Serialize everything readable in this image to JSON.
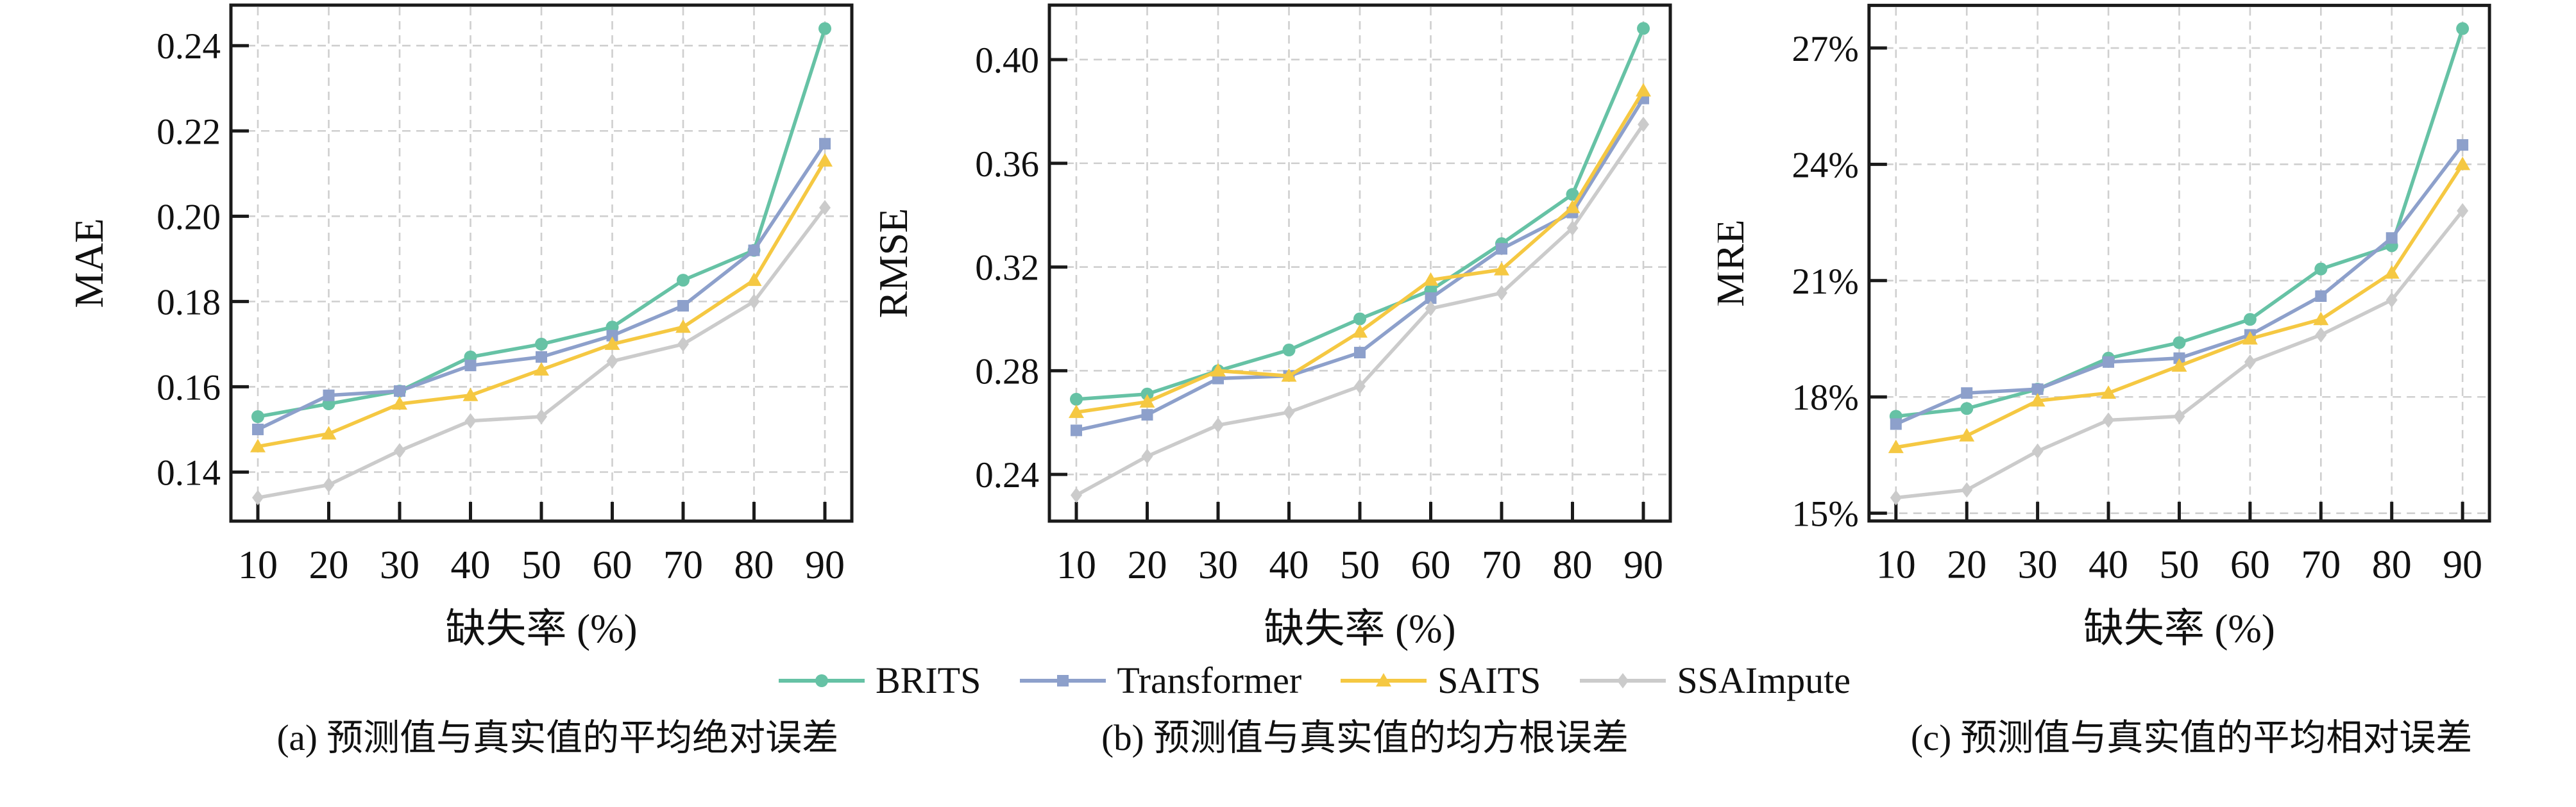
{
  "page": {
    "background": "#ffffff",
    "text_color": "#111111"
  },
  "legend": {
    "position": "bottom-center",
    "entries": [
      {
        "label": "BRITS",
        "color": "#66c2a5",
        "marker": "circle"
      },
      {
        "label": "Transformer",
        "color": "#8da0cb",
        "marker": "square"
      },
      {
        "label": "SAITS",
        "color": "#f5c842",
        "marker": "triangle"
      },
      {
        "label": "SSAImpute",
        "color": "#cbcbcb",
        "marker": "diamond"
      }
    ]
  },
  "chart_data": [
    {
      "type": "line",
      "title": "",
      "xlabel": "缺失率 (%)",
      "ylabel": "MAE",
      "caption": "(a) 预测值与真实值的平均绝对误差",
      "x": [
        10,
        20,
        30,
        40,
        50,
        60,
        70,
        80,
        90
      ],
      "xtick_labels": [
        "10",
        "20",
        "30",
        "40",
        "50",
        "60",
        "70",
        "80",
        "90"
      ],
      "xlim": [
        6.2,
        93.8
      ],
      "yticks": [
        0.14,
        0.16,
        0.18,
        0.2,
        0.22,
        0.24
      ],
      "ytick_labels": [
        "0.14",
        "0.16",
        "0.18",
        "0.20",
        "0.22",
        "0.24"
      ],
      "ylim": [
        0.1285,
        0.2495
      ],
      "grid": true,
      "series": [
        {
          "name": "BRITS",
          "color": "#66c2a5",
          "marker": "circle",
          "values": [
            0.153,
            0.156,
            0.159,
            0.167,
            0.17,
            0.174,
            0.185,
            0.192,
            0.244
          ]
        },
        {
          "name": "Transformer",
          "color": "#8da0cb",
          "marker": "square",
          "values": [
            0.15,
            0.158,
            0.159,
            0.165,
            0.167,
            0.172,
            0.179,
            0.192,
            0.217
          ]
        },
        {
          "name": "SAITS",
          "color": "#f5c842",
          "marker": "triangle",
          "values": [
            0.146,
            0.149,
            0.156,
            0.158,
            0.164,
            0.17,
            0.174,
            0.185,
            0.213
          ]
        },
        {
          "name": "SSAImpute",
          "color": "#cbcbcb",
          "marker": "diamond",
          "values": [
            0.134,
            0.137,
            0.145,
            0.152,
            0.153,
            0.166,
            0.17,
            0.18,
            0.202
          ]
        }
      ]
    },
    {
      "type": "line",
      "title": "",
      "xlabel": "缺失率 (%)",
      "ylabel": "RMSE",
      "caption": "(b) 预测值与真实值的均方根误差",
      "x": [
        10,
        20,
        30,
        40,
        50,
        60,
        70,
        80,
        90
      ],
      "xtick_labels": [
        "10",
        "20",
        "30",
        "40",
        "50",
        "60",
        "70",
        "80",
        "90"
      ],
      "xlim": [
        6.2,
        93.8
      ],
      "yticks": [
        0.24,
        0.28,
        0.32,
        0.36,
        0.4
      ],
      "ytick_labels": [
        "0.24",
        "0.28",
        "0.32",
        "0.36",
        "0.40"
      ],
      "ylim": [
        0.222,
        0.421
      ],
      "grid": true,
      "series": [
        {
          "name": "BRITS",
          "color": "#66c2a5",
          "marker": "circle",
          "values": [
            0.269,
            0.271,
            0.28,
            0.288,
            0.3,
            0.311,
            0.329,
            0.348,
            0.412
          ]
        },
        {
          "name": "Transformer",
          "color": "#8da0cb",
          "marker": "square",
          "values": [
            0.257,
            0.263,
            0.277,
            0.278,
            0.287,
            0.308,
            0.327,
            0.341,
            0.385
          ]
        },
        {
          "name": "SAITS",
          "color": "#f5c842",
          "marker": "triangle",
          "values": [
            0.264,
            0.268,
            0.28,
            0.278,
            0.295,
            0.315,
            0.319,
            0.343,
            0.388
          ]
        },
        {
          "name": "SSAImpute",
          "color": "#cbcbcb",
          "marker": "diamond",
          "values": [
            0.232,
            0.247,
            0.259,
            0.264,
            0.274,
            0.304,
            0.31,
            0.335,
            0.375
          ]
        }
      ]
    },
    {
      "type": "line",
      "title": "",
      "xlabel": "缺失率 (%)",
      "ylabel": "MRE",
      "caption": "(c) 预测值与真实值的平均相对误差",
      "x": [
        10,
        20,
        30,
        40,
        50,
        60,
        70,
        80,
        90
      ],
      "xtick_labels": [
        "10",
        "20",
        "30",
        "40",
        "50",
        "60",
        "70",
        "80",
        "90"
      ],
      "xlim": [
        6.2,
        93.8
      ],
      "yticks": [
        15,
        18,
        21,
        24,
        27
      ],
      "ytick_labels": [
        "15%",
        "18%",
        "21%",
        "24%",
        "27%"
      ],
      "ylim": [
        14.8,
        28.1
      ],
      "grid": true,
      "series": [
        {
          "name": "BRITS",
          "color": "#66c2a5",
          "marker": "circle",
          "values": [
            17.5,
            17.7,
            18.2,
            19.0,
            19.4,
            20.0,
            21.3,
            21.9,
            27.5
          ]
        },
        {
          "name": "Transformer",
          "color": "#8da0cb",
          "marker": "square",
          "values": [
            17.3,
            18.1,
            18.2,
            18.9,
            19.0,
            19.6,
            20.6,
            22.1,
            24.5
          ]
        },
        {
          "name": "SAITS",
          "color": "#f5c842",
          "marker": "triangle",
          "values": [
            16.7,
            17.0,
            17.9,
            18.1,
            18.8,
            19.5,
            20.0,
            21.2,
            24.0
          ]
        },
        {
          "name": "SSAImpute",
          "color": "#cbcbcb",
          "marker": "diamond",
          "values": [
            15.4,
            15.6,
            16.6,
            17.4,
            17.5,
            18.9,
            19.6,
            20.5,
            22.8
          ]
        }
      ]
    }
  ]
}
